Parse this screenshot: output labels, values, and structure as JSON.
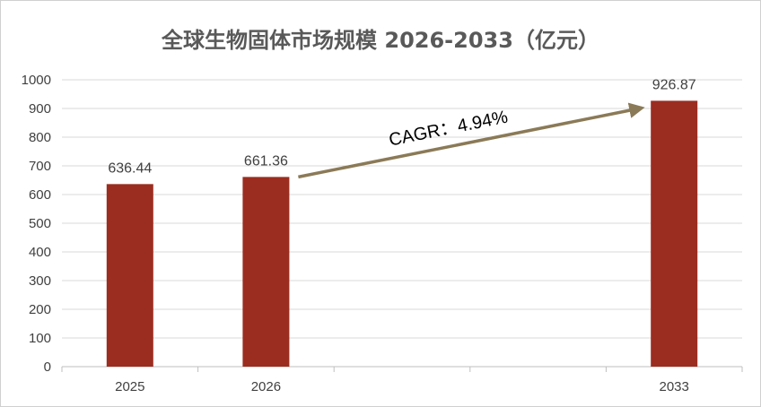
{
  "chart_data": {
    "type": "bar",
    "title": "全球生物固体市场规模 2026-2033（亿元）",
    "categories": [
      "2025",
      "2026",
      "",
      "",
      "2033"
    ],
    "values": [
      636.44,
      661.36,
      null,
      null,
      926.87
    ],
    "data_labels": [
      "636.44",
      "661.36",
      "",
      "",
      "926.87"
    ],
    "ylim": [
      0,
      1000
    ],
    "yticks": [
      0,
      100,
      200,
      300,
      400,
      500,
      600,
      700,
      800,
      900,
      1000
    ],
    "grid": true,
    "legend": "none",
    "bar_color": "#9B2D20",
    "gridline_color": "#d9d9d9",
    "axis_color": "#bfbfbf",
    "annotation": {
      "text": "CAGR：4.94%",
      "arrow_from": {
        "category_index": 1,
        "value": 661.36
      },
      "arrow_to": {
        "category_index": 4,
        "value": 926.87
      },
      "arrow_color": "#8B7A57"
    }
  }
}
